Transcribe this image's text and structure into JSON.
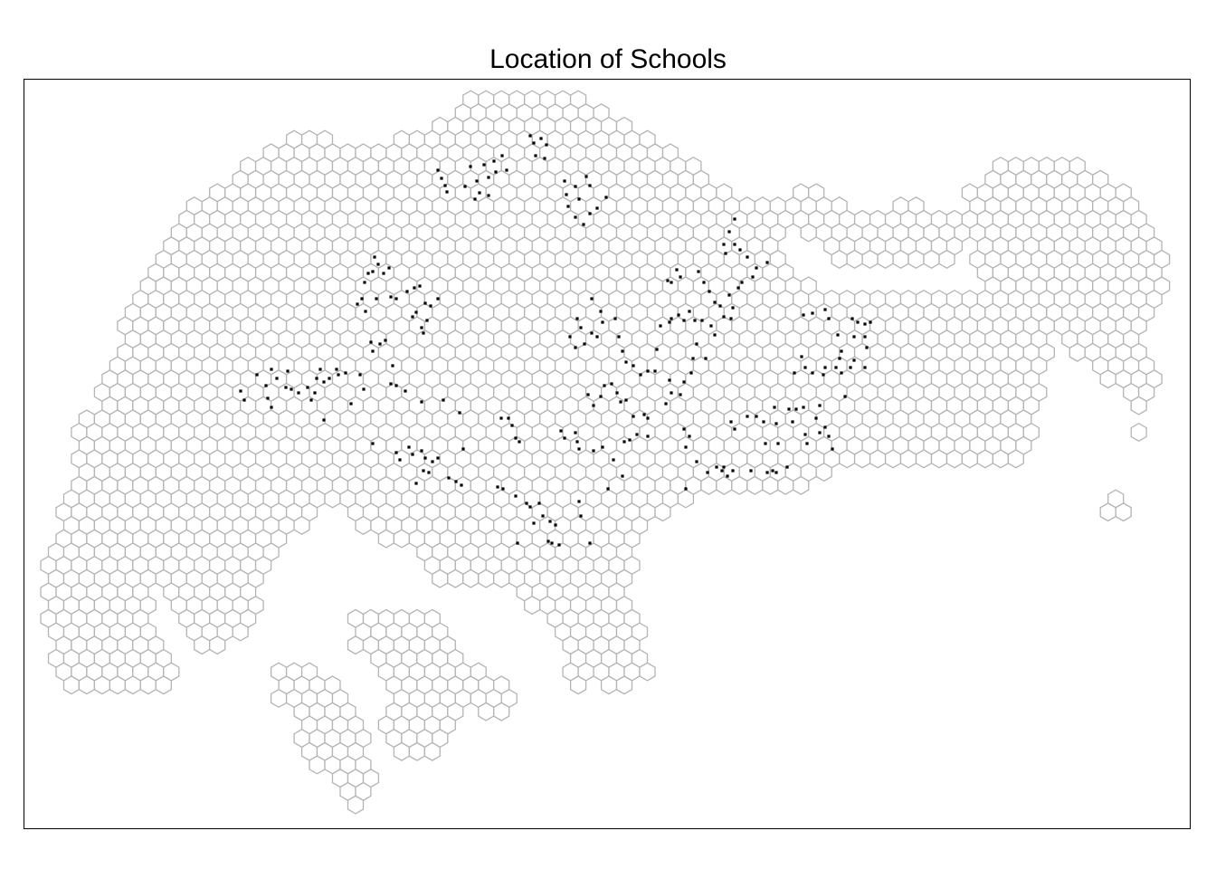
{
  "title": "Location of Schools",
  "style": {
    "hex_stroke": "#b4b4b4",
    "hex_fill": "#ffffff",
    "point_color": "#000000"
  },
  "map": {
    "kind": "hexagonal grid over region outline with point symbols",
    "layers": [
      "hexagon grid",
      "school points"
    ]
  }
}
